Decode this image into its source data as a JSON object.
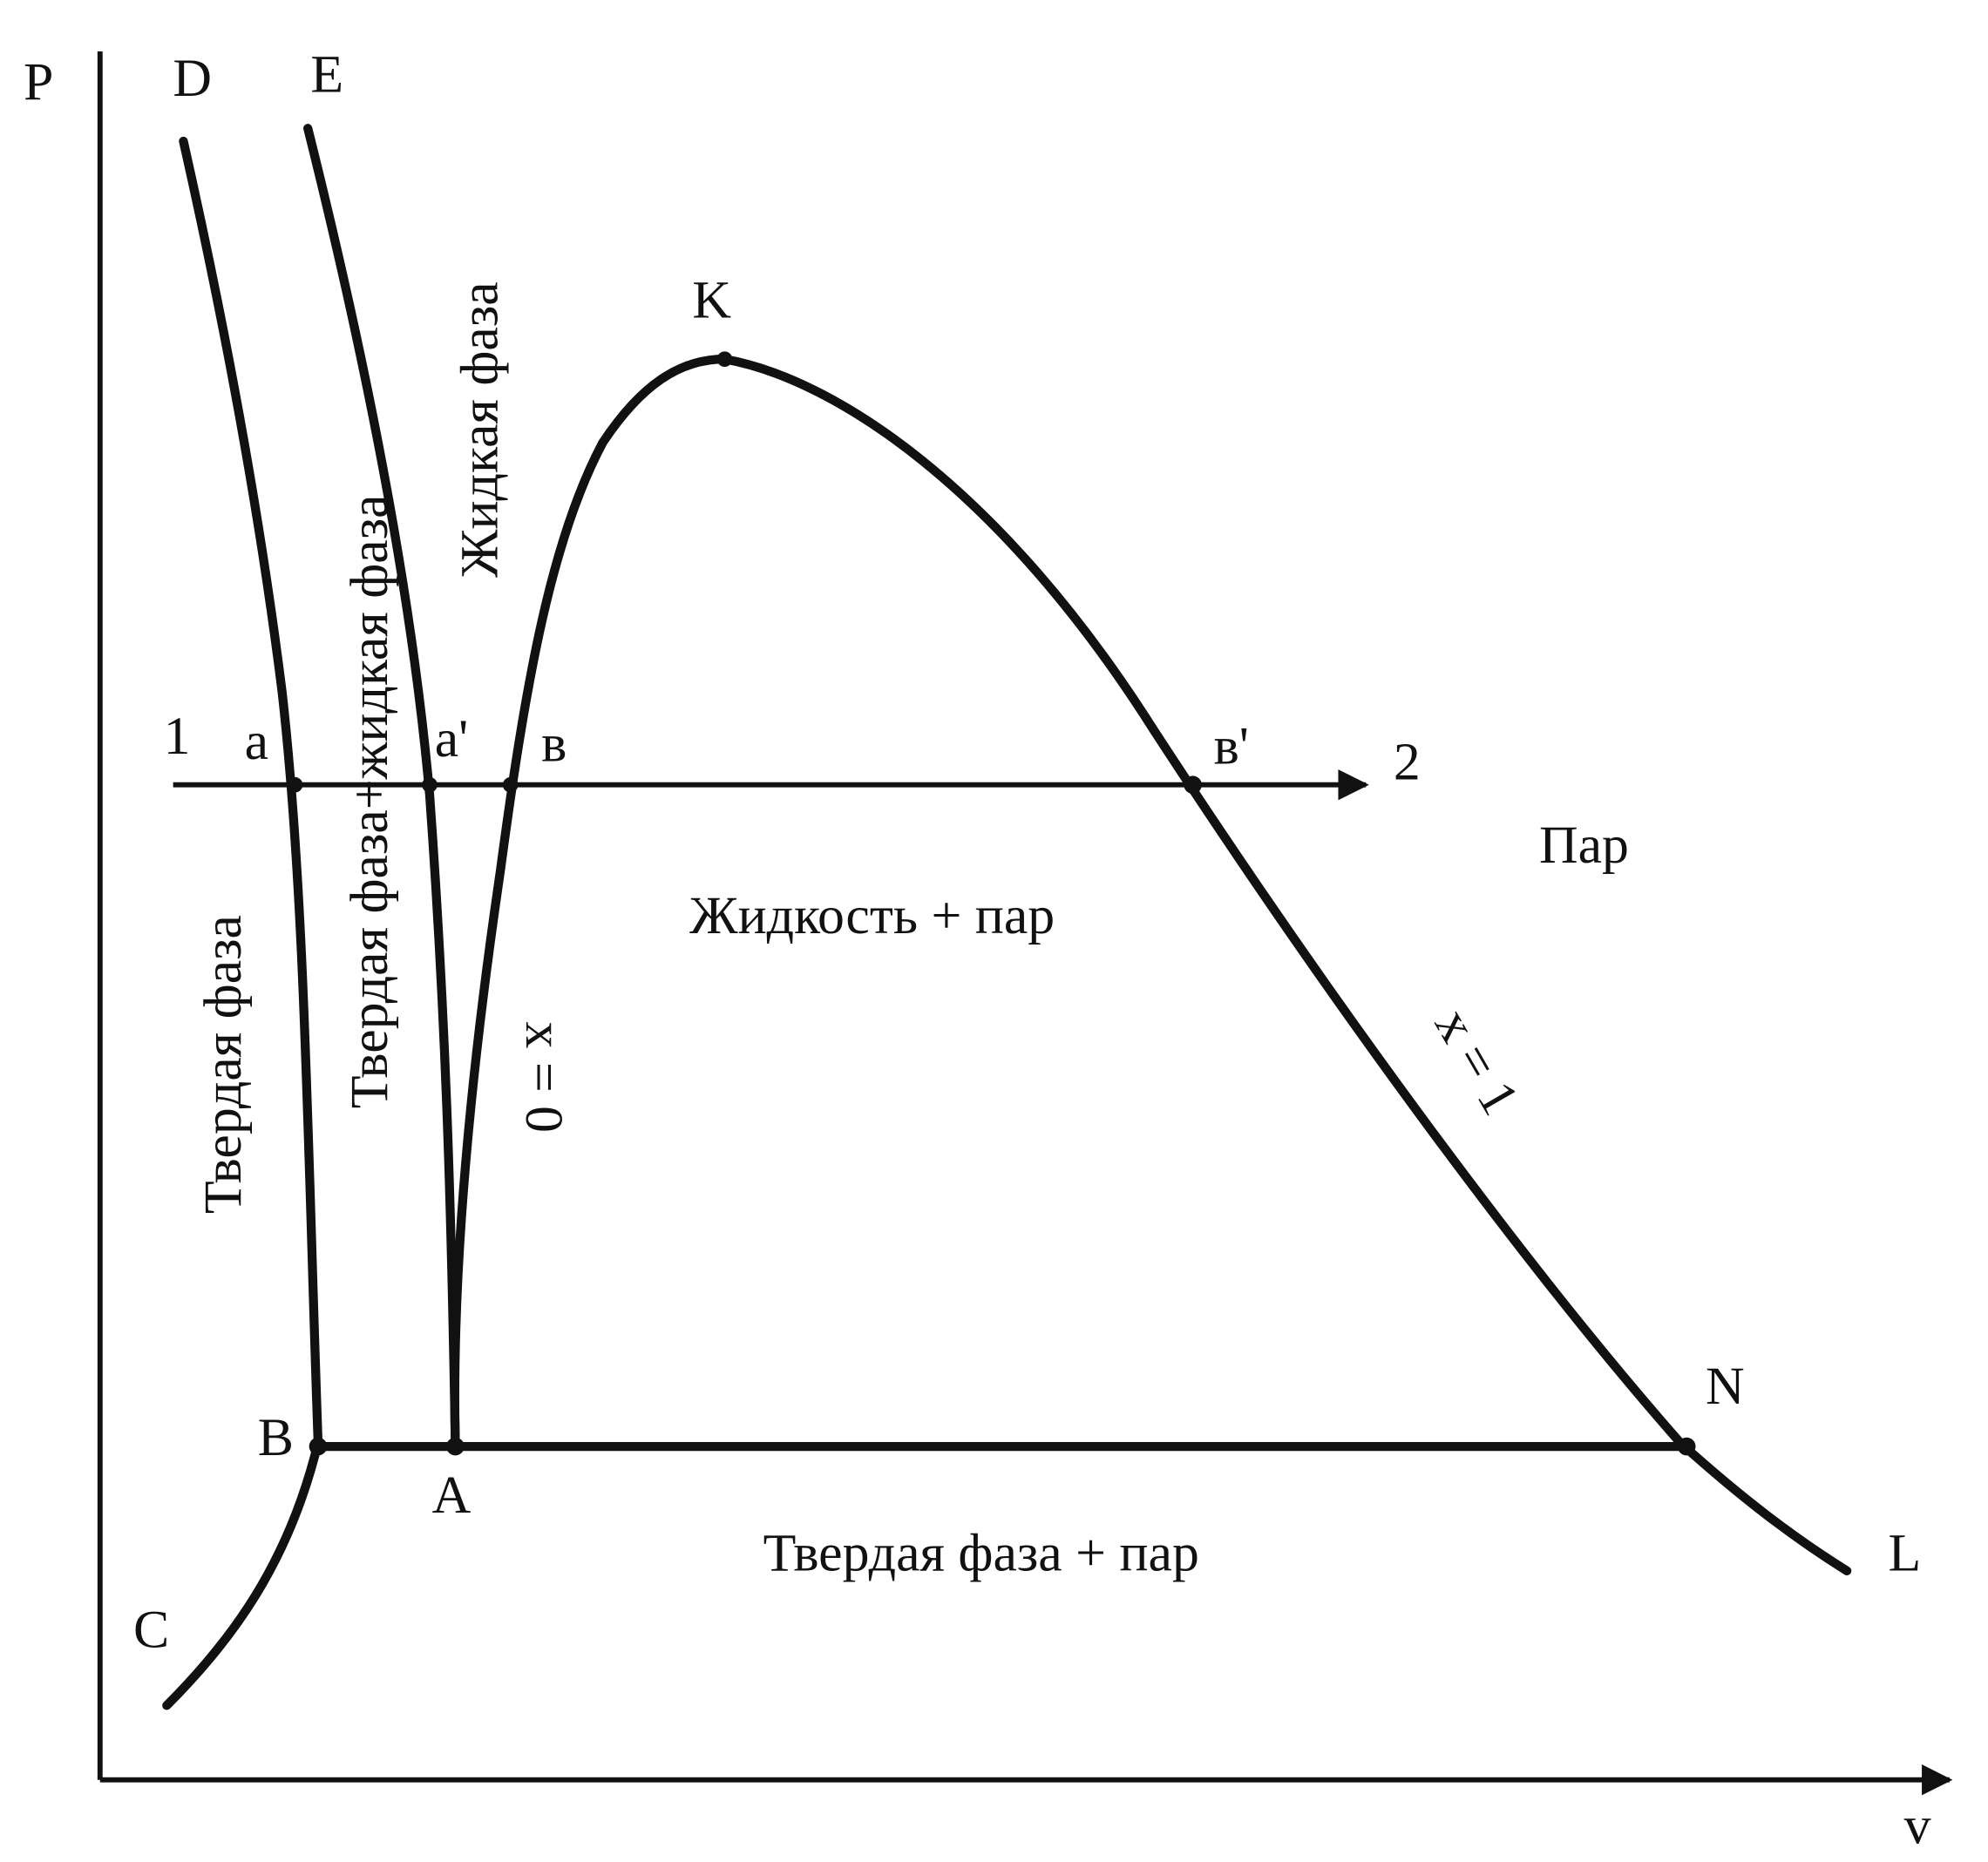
{
  "axes": {
    "y_label": "P",
    "x_label": "v"
  },
  "points": {
    "D": "D",
    "E": "E",
    "K": "K",
    "one": "1",
    "a": "a",
    "a_prime": "a'",
    "b": "в",
    "b_prime": "в'",
    "two": "2",
    "B": "B",
    "A": "A",
    "N": "N",
    "L": "L",
    "C": "C"
  },
  "regions": {
    "vapor": "Пар",
    "liquid_vapor": "Жидкость + пар",
    "solid_vapor": "Твердая фаза + пар",
    "solid": "Твердая фаза",
    "solid_liquid": "Твердая фаза+жидкая фаза",
    "liquid": "Жидкая фаза"
  },
  "lines": {
    "x0": "x = 0",
    "x1": "x = 1"
  }
}
